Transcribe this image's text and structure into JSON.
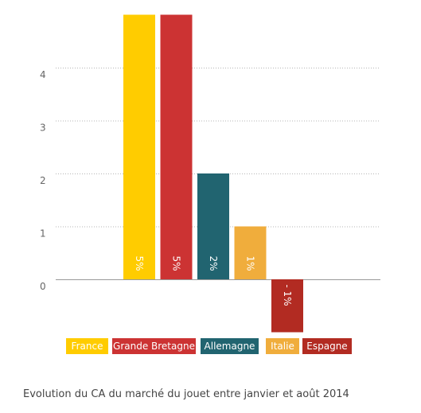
{
  "chart_data": {
    "type": "bar",
    "title": "",
    "xlabel": "",
    "ylabel": "",
    "ylim": [
      -1,
      5
    ],
    "yticks": [
      0,
      1,
      2,
      3,
      4
    ],
    "grid": true,
    "legend_position": "bottom",
    "categories": [
      "France",
      "Grande Bretagne",
      "Allemagne",
      "Italie",
      "Espagne"
    ],
    "values": [
      5,
      5,
      2,
      1,
      -1
    ],
    "data_labels": [
      "5%",
      "5%",
      "2%",
      "1%",
      "- 1%"
    ],
    "colors": [
      "#ffcc00",
      "#cc3333",
      "#216470",
      "#f0ad3c",
      "#b22b22"
    ]
  },
  "caption": "Evolution du CA du marché du jouet entre janvier et août 2014"
}
